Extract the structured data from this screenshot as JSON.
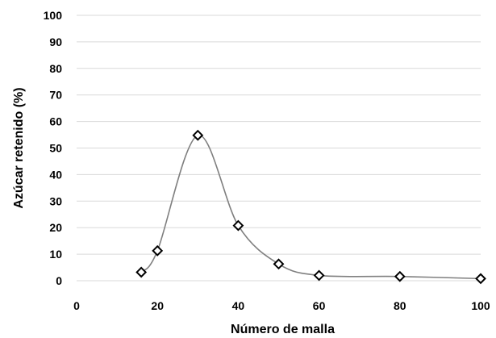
{
  "chart_data": {
    "type": "scatter",
    "xlabel": "Número de malla",
    "ylabel": "Azúcar retenido (%)",
    "xlim": [
      0,
      100
    ],
    "ylim": [
      0,
      100
    ],
    "x_ticks": [
      "0",
      "20",
      "40",
      "60",
      "80",
      "100"
    ],
    "y_ticks": [
      "0",
      "10",
      "20",
      "30",
      "40",
      "50",
      "60",
      "70",
      "80",
      "90",
      "100"
    ],
    "grid": "horizontal",
    "marker": "diamond",
    "line": "smooth",
    "line_color": "#7f7f7f",
    "marker_color": "#000000",
    "series": [
      {
        "x": [
          16,
          20,
          30,
          40,
          50,
          60,
          80,
          100
        ],
        "y": [
          3.2,
          11.3,
          54.8,
          20.8,
          6.3,
          2.0,
          1.6,
          0.8
        ]
      }
    ]
  }
}
